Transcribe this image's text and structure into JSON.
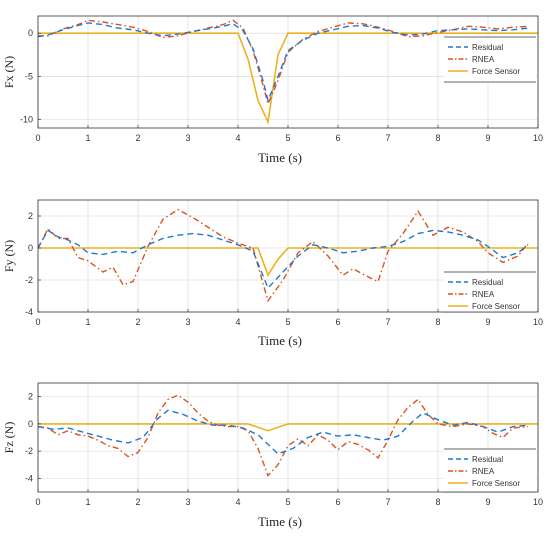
{
  "colors": {
    "residual": "#1f77d4",
    "rnea": "#d9531e",
    "force_sensor": "#edb120",
    "axis": "#333333",
    "grid": "#d4d4d4"
  },
  "chart_data": [
    {
      "type": "line",
      "ylabel": "Fx (N)",
      "xlabel": "Time (s)",
      "xlim": [
        0,
        10
      ],
      "ylim": [
        -11,
        2
      ],
      "xticks": [
        0,
        1,
        2,
        3,
        4,
        5,
        6,
        7,
        8,
        9,
        10
      ],
      "yticks": [
        0,
        -5,
        -10
      ],
      "grid": true,
      "legend": "top-right",
      "series": [
        {
          "name": "Residual",
          "style": "dashed",
          "color": "#1f77d4",
          "x": [
            0,
            0.2,
            0.5,
            0.8,
            1.0,
            1.3,
            1.6,
            1.9,
            2.2,
            2.5,
            2.8,
            3.1,
            3.4,
            3.7,
            3.9,
            4.1,
            4.3,
            4.5,
            4.6,
            4.8,
            5.0,
            5.3,
            5.6,
            5.9,
            6.2,
            6.5,
            6.8,
            7.1,
            7.4,
            7.7,
            8.0,
            8.3,
            8.6,
            8.9,
            9.2,
            9.5,
            9.8
          ],
          "y": [
            -0.4,
            -0.2,
            0.4,
            0.9,
            1.2,
            1.0,
            0.6,
            0.4,
            0.0,
            -0.3,
            -0.1,
            0.2,
            0.5,
            0.8,
            1.1,
            0.3,
            -1.8,
            -5.5,
            -7.8,
            -5.0,
            -2.0,
            -0.8,
            0.0,
            0.4,
            0.8,
            0.9,
            0.6,
            0.1,
            -0.2,
            -0.1,
            0.3,
            0.4,
            0.5,
            0.4,
            0.3,
            0.4,
            0.6
          ]
        },
        {
          "name": "RNEA",
          "style": "dashdot",
          "color": "#d9531e",
          "x": [
            0,
            0.2,
            0.5,
            0.8,
            1.0,
            1.3,
            1.6,
            1.9,
            2.2,
            2.5,
            2.8,
            3.1,
            3.4,
            3.7,
            3.9,
            4.1,
            4.3,
            4.5,
            4.6,
            4.8,
            5.0,
            5.3,
            5.6,
            5.9,
            6.2,
            6.5,
            6.8,
            7.1,
            7.4,
            7.7,
            8.0,
            8.3,
            8.6,
            8.9,
            9.2,
            9.5,
            9.8
          ],
          "y": [
            -0.3,
            -0.3,
            0.5,
            1.0,
            1.5,
            1.3,
            1.0,
            0.7,
            0.2,
            -0.5,
            -0.3,
            0.2,
            0.6,
            1.0,
            1.5,
            0.6,
            -2.0,
            -6.0,
            -8.2,
            -5.5,
            -2.2,
            -0.7,
            0.2,
            0.7,
            1.2,
            1.1,
            0.7,
            0.2,
            -0.4,
            -0.3,
            0.1,
            0.4,
            0.8,
            0.7,
            0.5,
            0.7,
            0.8
          ]
        },
        {
          "name": "Force Sensor",
          "style": "solid",
          "color": "#edb120",
          "x": [
            0,
            4.0,
            4.2,
            4.4,
            4.6,
            4.8,
            5.0,
            10
          ],
          "y": [
            0,
            0,
            -3.0,
            -7.8,
            -10.3,
            -2.5,
            0,
            0
          ]
        }
      ]
    },
    {
      "type": "line",
      "ylabel": "Fy (N)",
      "xlabel": "Time (s)",
      "xlim": [
        0,
        10
      ],
      "ylim": [
        -4,
        3
      ],
      "xticks": [
        0,
        1,
        2,
        3,
        4,
        5,
        6,
        7,
        8,
        9,
        10
      ],
      "yticks": [
        2,
        0,
        -2,
        -4
      ],
      "grid": true,
      "legend": "bottom-right",
      "series": [
        {
          "name": "Residual",
          "style": "dashed",
          "color": "#1f77d4",
          "x": [
            0,
            0.2,
            0.4,
            0.6,
            0.8,
            1.0,
            1.3,
            1.6,
            1.9,
            2.2,
            2.5,
            2.8,
            3.1,
            3.4,
            3.7,
            4.0,
            4.3,
            4.6,
            4.9,
            5.2,
            5.5,
            5.8,
            6.1,
            6.4,
            6.7,
            7.0,
            7.3,
            7.6,
            7.9,
            8.2,
            8.5,
            8.8,
            9.0,
            9.3,
            9.6,
            9.8
          ],
          "y": [
            0.0,
            1.1,
            0.7,
            0.5,
            0.2,
            -0.3,
            -0.4,
            -0.2,
            -0.3,
            0.2,
            0.6,
            0.8,
            0.9,
            0.8,
            0.5,
            0.2,
            -0.2,
            -2.5,
            -1.5,
            -0.5,
            0.2,
            0.0,
            -0.3,
            -0.2,
            0.0,
            0.1,
            0.4,
            0.9,
            1.1,
            1.0,
            0.8,
            0.5,
            0.1,
            -0.6,
            -0.3,
            0.2
          ]
        },
        {
          "name": "RNEA",
          "style": "dashdot",
          "color": "#d9531e",
          "x": [
            0,
            0.2,
            0.4,
            0.6,
            0.8,
            1.0,
            1.3,
            1.5,
            1.7,
            1.9,
            2.2,
            2.5,
            2.8,
            3.1,
            3.4,
            3.7,
            4.0,
            4.3,
            4.6,
            4.9,
            5.2,
            5.5,
            5.8,
            6.1,
            6.3,
            6.6,
            6.8,
            7.0,
            7.3,
            7.6,
            7.9,
            8.2,
            8.5,
            8.8,
            9.0,
            9.3,
            9.6,
            9.8
          ],
          "y": [
            0.0,
            1.2,
            0.6,
            0.6,
            -0.6,
            -0.8,
            -1.5,
            -1.2,
            -2.3,
            -2.1,
            0.1,
            1.8,
            2.4,
            1.9,
            1.3,
            0.7,
            0.3,
            0.0,
            -3.3,
            -2.0,
            -0.3,
            0.4,
            -0.5,
            -1.7,
            -1.3,
            -1.8,
            -2.1,
            -0.2,
            0.9,
            2.3,
            0.8,
            1.3,
            1.0,
            0.4,
            -0.3,
            -0.9,
            -0.5,
            0.3
          ]
        },
        {
          "name": "Force Sensor",
          "style": "solid",
          "color": "#edb120",
          "x": [
            0,
            4.4,
            4.6,
            4.8,
            5.0,
            10
          ],
          "y": [
            0,
            0,
            -1.7,
            -0.7,
            0,
            0
          ]
        }
      ]
    },
    {
      "type": "line",
      "ylabel": "Fz (N)",
      "xlabel": "Time (s)",
      "xlim": [
        0,
        10
      ],
      "ylim": [
        -5,
        3
      ],
      "xticks": [
        0,
        1,
        2,
        3,
        4,
        5,
        6,
        7,
        8,
        9,
        10
      ],
      "yticks": [
        2,
        0,
        -2,
        -4
      ],
      "grid": true,
      "legend": "bottom-right",
      "series": [
        {
          "name": "Residual",
          "style": "dashed",
          "color": "#1f77d4",
          "x": [
            0,
            0.3,
            0.6,
            0.9,
            1.2,
            1.5,
            1.8,
            2.1,
            2.4,
            2.6,
            2.9,
            3.2,
            3.5,
            3.8,
            4.1,
            4.4,
            4.6,
            4.8,
            5.1,
            5.4,
            5.7,
            6.0,
            6.3,
            6.6,
            6.9,
            7.2,
            7.5,
            7.7,
            8.0,
            8.3,
            8.6,
            8.9,
            9.2,
            9.5,
            9.8
          ],
          "y": [
            -0.2,
            -0.4,
            -0.3,
            -0.6,
            -0.9,
            -1.2,
            -1.4,
            -1.0,
            0.4,
            1.0,
            0.7,
            0.2,
            -0.1,
            -0.1,
            -0.3,
            -0.8,
            -1.5,
            -2.2,
            -1.8,
            -1.0,
            -0.6,
            -0.9,
            -0.8,
            -1.0,
            -1.2,
            -0.9,
            0.2,
            0.8,
            0.3,
            -0.1,
            0.1,
            -0.2,
            -0.6,
            -0.2,
            -0.1
          ]
        },
        {
          "name": "RNEA",
          "style": "dashdot",
          "color": "#d9531e",
          "x": [
            0,
            0.2,
            0.4,
            0.6,
            0.8,
            1.0,
            1.2,
            1.4,
            1.6,
            1.8,
            2.0,
            2.2,
            2.4,
            2.6,
            2.8,
            3.0,
            3.2,
            3.4,
            3.6,
            3.8,
            4.0,
            4.2,
            4.4,
            4.6,
            4.8,
            5.0,
            5.2,
            5.4,
            5.6,
            5.8,
            6.0,
            6.2,
            6.4,
            6.6,
            6.8,
            7.0,
            7.2,
            7.4,
            7.6,
            7.8,
            8.0,
            8.3,
            8.6,
            8.9,
            9.1,
            9.3,
            9.5,
            9.8
          ],
          "y": [
            -0.2,
            -0.3,
            -0.8,
            -0.5,
            -0.8,
            -0.9,
            -1.2,
            -1.6,
            -1.8,
            -2.4,
            -2.1,
            -1.0,
            0.8,
            1.8,
            2.1,
            1.6,
            0.8,
            0.2,
            -0.1,
            -0.2,
            -0.2,
            -0.5,
            -1.8,
            -3.8,
            -3.0,
            -1.6,
            -1.1,
            -1.6,
            -0.8,
            -1.2,
            -1.9,
            -1.3,
            -1.5,
            -1.9,
            -2.5,
            -1.2,
            0.3,
            1.2,
            1.8,
            0.7,
            0.0,
            -0.2,
            0.0,
            -0.2,
            -0.7,
            -1.0,
            -0.3,
            -0.2
          ]
        },
        {
          "name": "Force Sensor",
          "style": "solid",
          "color": "#edb120",
          "x": [
            0,
            4.2,
            4.6,
            5.0,
            10
          ],
          "y": [
            0,
            0,
            -0.5,
            0,
            0
          ]
        }
      ]
    }
  ]
}
